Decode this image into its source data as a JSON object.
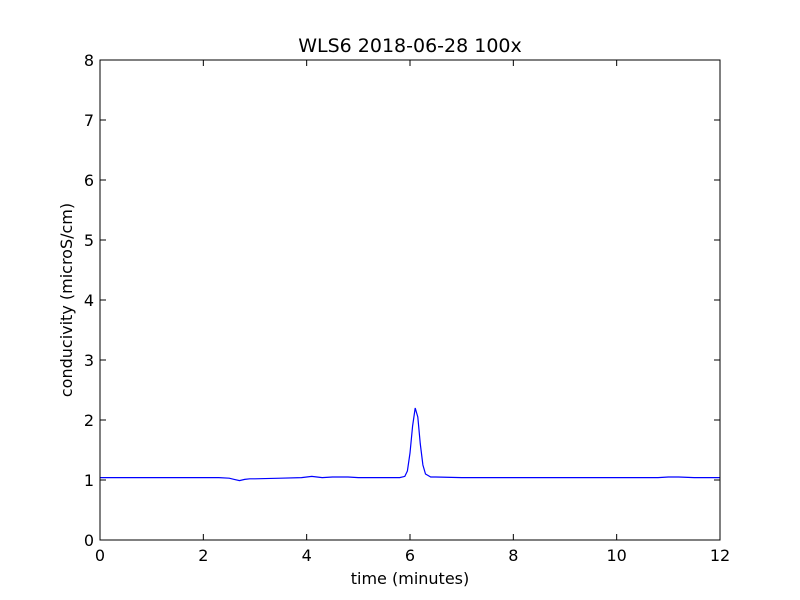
{
  "chart_data": {
    "type": "line",
    "title": "WLS6 2018-06-28 100x",
    "xlabel": "time (minutes)",
    "ylabel": "conducivity (microS/cm)",
    "xlim": [
      0,
      12
    ],
    "ylim": [
      0,
      8
    ],
    "x_ticks": [
      0,
      2,
      4,
      6,
      8,
      10,
      12
    ],
    "y_ticks": [
      0,
      1,
      2,
      3,
      4,
      5,
      6,
      7,
      8
    ],
    "grid": false,
    "line_color": "#0000ff",
    "series": [
      {
        "x": [
          0,
          0.5,
          1,
          1.5,
          2,
          2.3,
          2.5,
          2.6,
          2.7,
          2.8,
          2.9,
          3.0,
          3.5,
          3.9,
          4.0,
          4.1,
          4.2,
          4.3,
          4.5,
          4.7,
          4.8,
          5.0,
          5.5,
          5.8,
          5.9,
          5.95,
          6.0,
          6.05,
          6.1,
          6.15,
          6.2,
          6.25,
          6.3,
          6.4,
          6.5,
          7,
          8,
          9,
          10,
          10.5,
          10.8,
          11.0,
          11.2,
          11.5,
          12
        ],
        "y": [
          1.04,
          1.04,
          1.04,
          1.04,
          1.04,
          1.04,
          1.03,
          1.01,
          0.99,
          1.01,
          1.02,
          1.02,
          1.03,
          1.04,
          1.05,
          1.06,
          1.05,
          1.04,
          1.05,
          1.05,
          1.05,
          1.04,
          1.04,
          1.04,
          1.06,
          1.15,
          1.45,
          1.9,
          2.2,
          2.05,
          1.6,
          1.25,
          1.1,
          1.05,
          1.05,
          1.04,
          1.04,
          1.04,
          1.04,
          1.04,
          1.04,
          1.05,
          1.05,
          1.04,
          1.04
        ]
      }
    ]
  }
}
